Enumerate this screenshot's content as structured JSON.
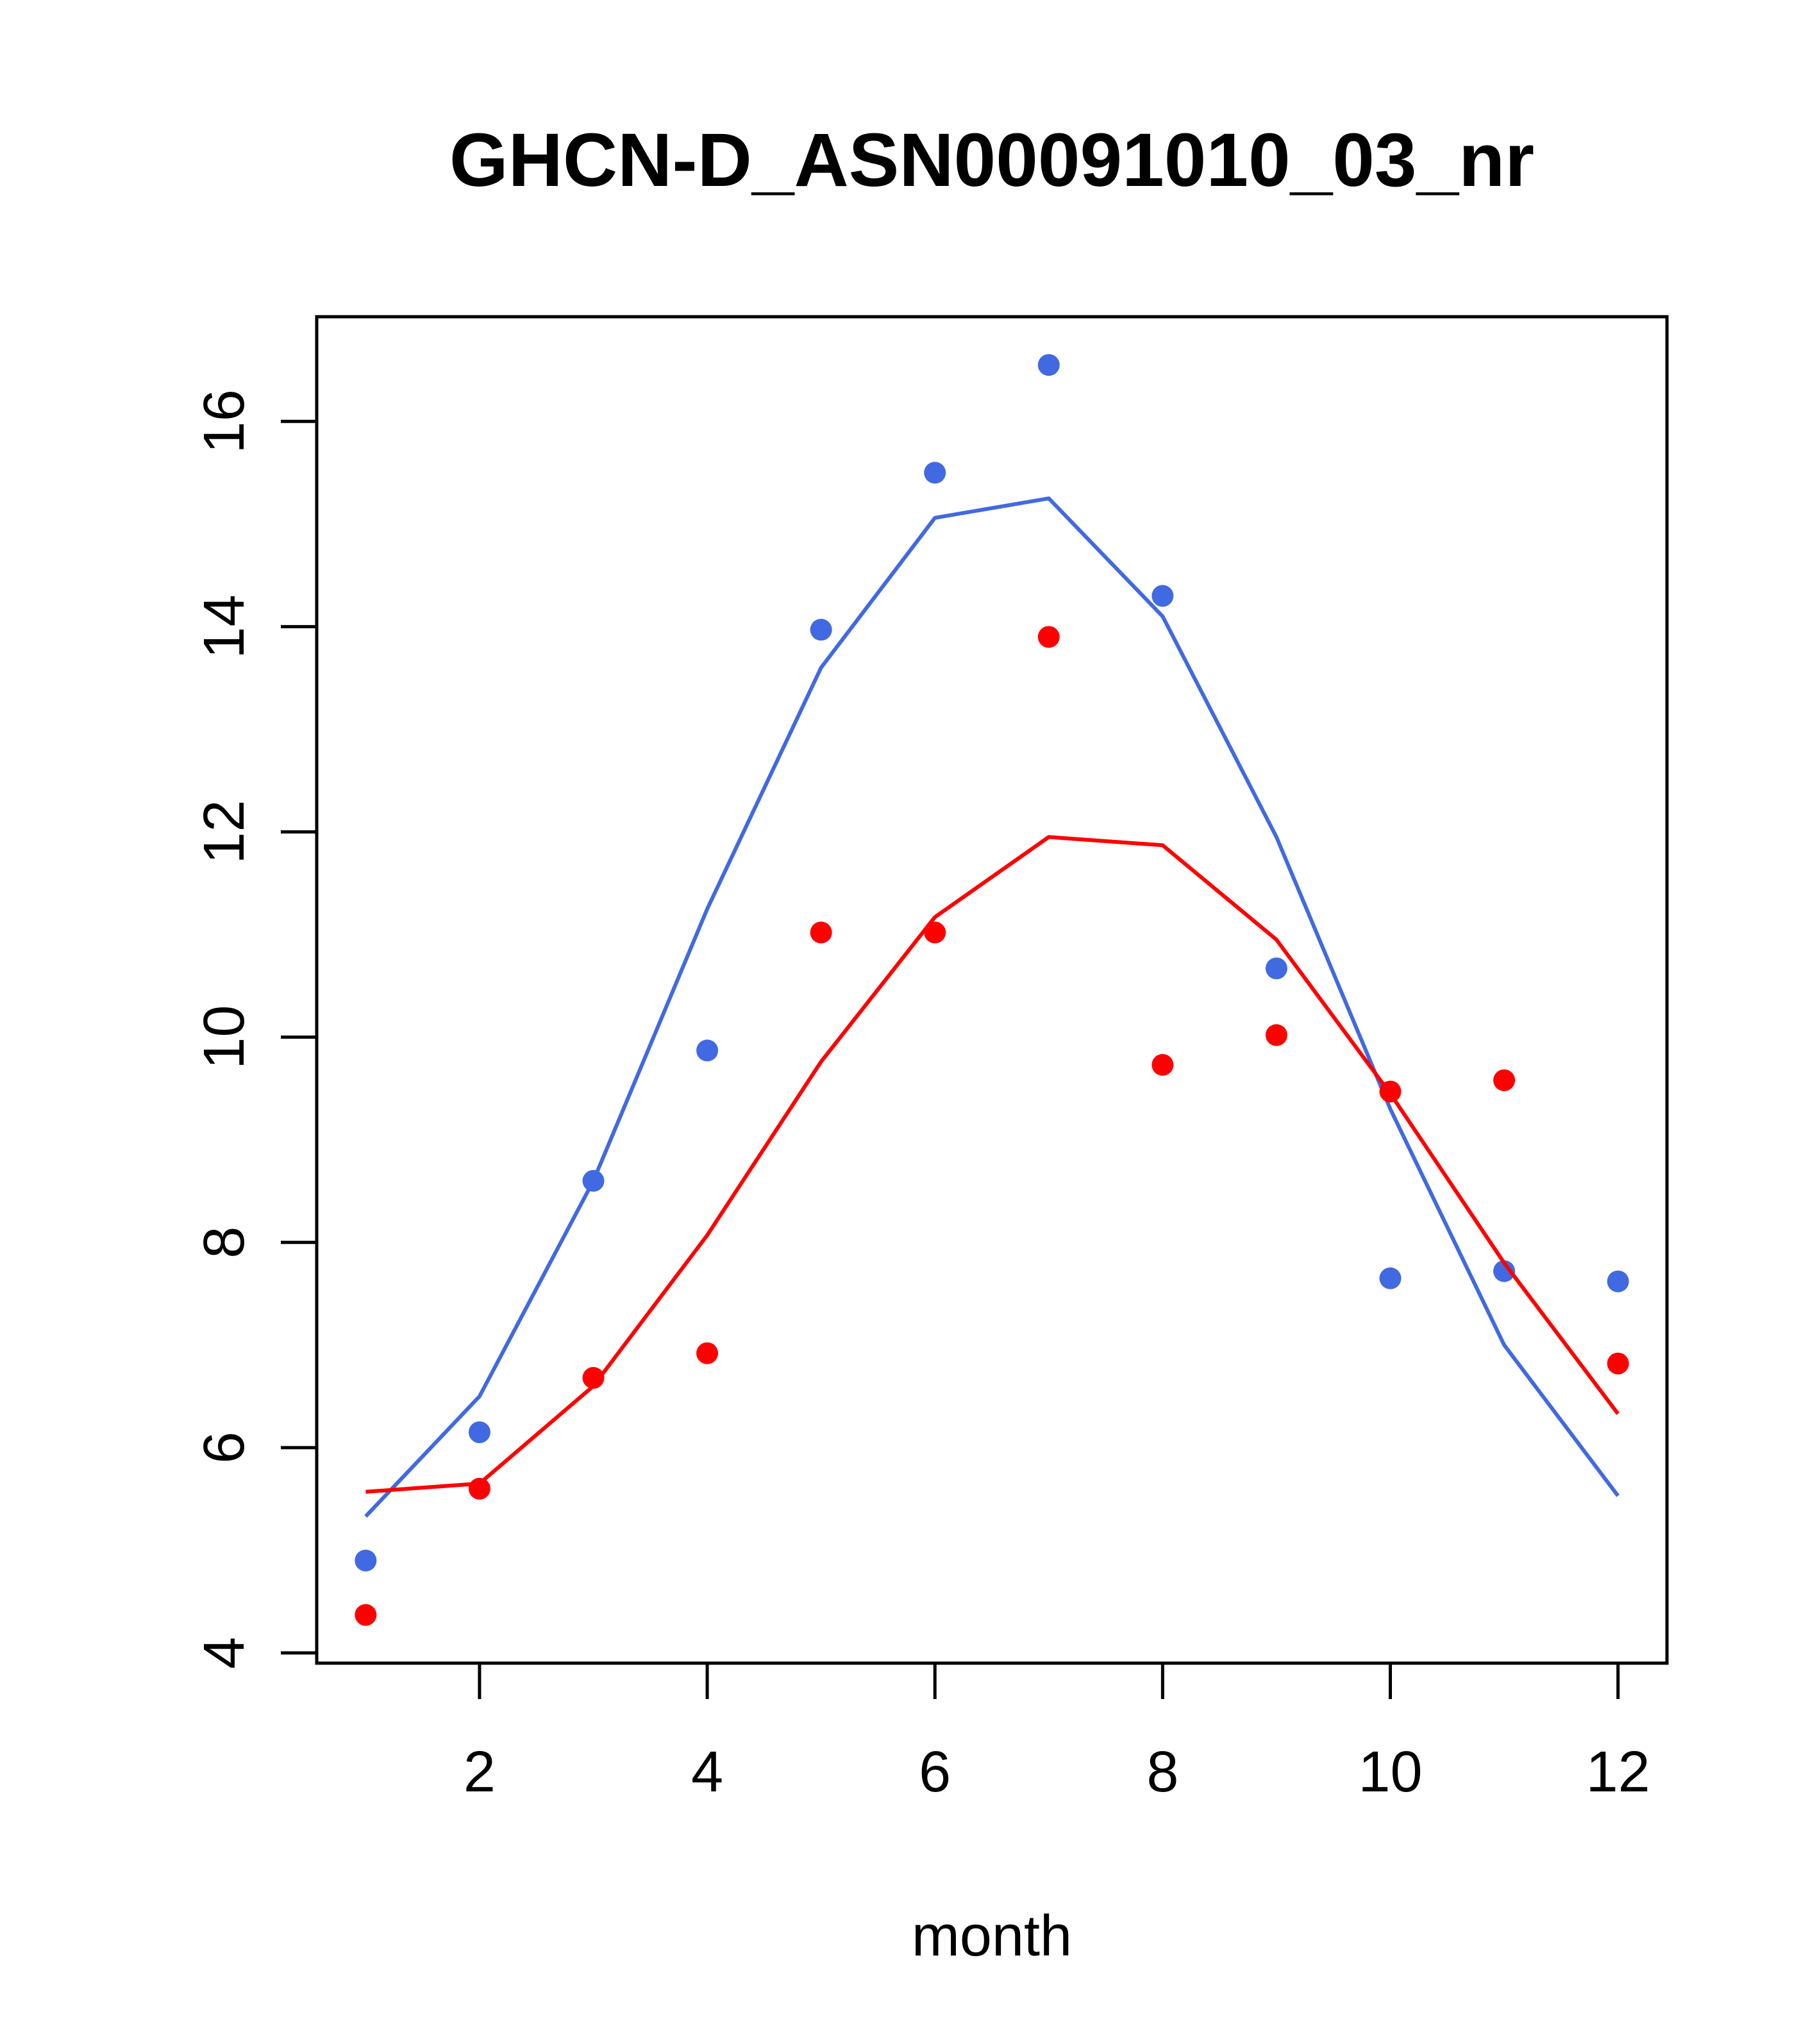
{
  "chart_data": {
    "type": "scatter",
    "title": "GHCN-D_ASN00091010_03_nr",
    "xlabel": "month",
    "ylabel": "",
    "xlim": [
      0.57,
      12.43
    ],
    "ylim": [
      3.9,
      17.02
    ],
    "x_ticks": [
      2,
      4,
      6,
      8,
      10,
      12
    ],
    "y_ticks": [
      4,
      6,
      8,
      10,
      12,
      14,
      16
    ],
    "grid": false,
    "legend": "none",
    "x": [
      1,
      2,
      3,
      4,
      5,
      6,
      7,
      8,
      9,
      10,
      11,
      12
    ],
    "series": [
      {
        "color": "#4169E1",
        "points": [
          4.9,
          6.15,
          8.6,
          9.87,
          13.97,
          15.5,
          16.55,
          14.3,
          10.67,
          7.65,
          7.72,
          7.62
        ],
        "fit": [
          5.33,
          6.5,
          8.6,
          11.25,
          13.6,
          15.06,
          15.25,
          14.1,
          11.95,
          9.3,
          7.0,
          5.53
        ]
      },
      {
        "color": "#FF0000",
        "points": [
          4.37,
          5.6,
          6.68,
          6.92,
          11.02,
          11.02,
          13.9,
          9.73,
          10.02,
          9.47,
          9.58,
          6.82
        ],
        "fit": [
          5.57,
          5.65,
          6.6,
          8.07,
          9.76,
          11.17,
          11.95,
          11.87,
          10.95,
          9.45,
          7.8,
          6.33
        ]
      }
    ]
  }
}
